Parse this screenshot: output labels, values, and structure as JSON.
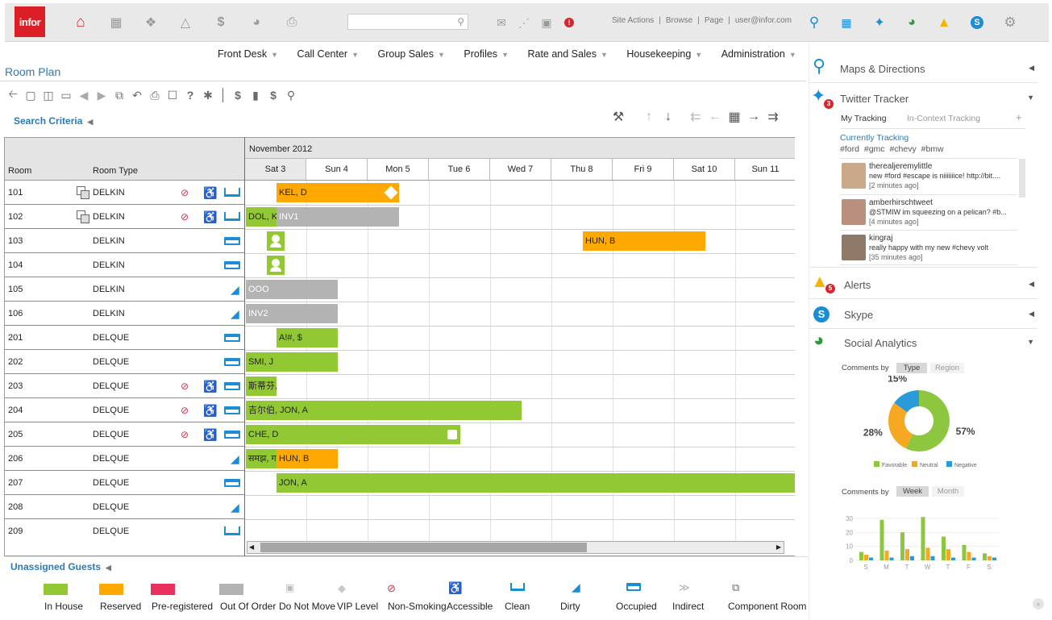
{
  "topbar": {
    "logo": "infor",
    "search_placeholder": "",
    "links": [
      "Site Actions",
      "Browse",
      "Page",
      "user@infor.com"
    ],
    "icons": [
      "home-icon",
      "dashboard-icon",
      "box-icon",
      "lab-icon",
      "dollar-doc-icon",
      "pie-icon",
      "file-icon",
      "mail-icon",
      "share-icon",
      "chat-icon",
      "alert-icon"
    ],
    "right_icons": [
      "map-pin-icon",
      "bar-chart-icon",
      "twitter-icon",
      "social-analytics-icon",
      "warning-icon",
      "skype-icon",
      "settings-icon"
    ]
  },
  "menu": [
    "Front Desk",
    "Call Center",
    "Group Sales",
    "Profiles",
    "Rate and Sales",
    "Housekeeping",
    "Administration"
  ],
  "page_title": "Room Plan",
  "search_criteria": "Search Criteria",
  "grid": {
    "month": "November 2012",
    "col_room": "Room",
    "col_type": "Room Type",
    "days": [
      "Sat 3",
      "Sun 4",
      "Mon 5",
      "Tue 6",
      "Wed 7",
      "Thu 8",
      "Fri 9",
      "Sat 10",
      "Sun 11"
    ],
    "rooms": [
      {
        "num": "101",
        "type": "DELKIN"
      },
      {
        "num": "102",
        "type": "DELKIN"
      },
      {
        "num": "103",
        "type": "DELKIN"
      },
      {
        "num": "104",
        "type": "DELKIN"
      },
      {
        "num": "105",
        "type": "DELKIN"
      },
      {
        "num": "106",
        "type": "DELKIN"
      },
      {
        "num": "201",
        "type": "DELQUE"
      },
      {
        "num": "202",
        "type": "DELQUE"
      },
      {
        "num": "203",
        "type": "DELQUE"
      },
      {
        "num": "204",
        "type": "DELQUE"
      },
      {
        "num": "205",
        "type": "DELQUE"
      },
      {
        "num": "206",
        "type": "DELQUE"
      },
      {
        "num": "207",
        "type": "DELQUE"
      },
      {
        "num": "208",
        "type": "DELQUE"
      },
      {
        "num": "209",
        "type": "DELQUE"
      }
    ],
    "bars": [
      "KEL, D",
      "DOL, K",
      "INV1",
      "HUN, B",
      "OOO",
      "INV2",
      "A!#, $",
      "SMI, J",
      "斯蒂芬,",
      "吉尔伯, JON, A",
      "CHE, D",
      "समझ, ग",
      "HUN, B",
      "JON, A"
    ]
  },
  "unassigned": "Unassigned Guests",
  "legend": [
    "In House",
    "Reserved",
    "Pre-registered",
    "Out Of Order",
    "Do Not Move",
    "VIP Level",
    "Non-Smoking",
    "Accessible",
    "Clean",
    "Dirty",
    "Occupied",
    "Indirect",
    "Component Room"
  ],
  "colors": {
    "in_house": "#93c835",
    "reserved": "#fda901",
    "pre_registered": "#e8315e",
    "out_of_order": "#b3b3b3",
    "accent": "#2a7ab8"
  },
  "panel": {
    "maps": "Maps & Directions",
    "twitter": "Twitter Tracker",
    "twitter_badge": "3",
    "tab_my": "My Tracking",
    "tab_context": "In-Context Tracking",
    "tab_add": "+",
    "tracking_title": "Currently Tracking",
    "tags": "#ford  #gmc  #chevy  #bmw",
    "tweets": [
      {
        "name": "therealjeremylittle",
        "text": "new #ford #escape is niiiiiiice! http://bit....",
        "time": "[2 minutes ago]"
      },
      {
        "name": "amberhirschtweet",
        "text": "@STMIW im squeezing on a pelican? #b...",
        "time": "[4 minutes ago]"
      },
      {
        "name": "kingraj",
        "text": "really happy with my new #chevy volt",
        "time": "[35 minutes ago]"
      }
    ],
    "alerts": "Alerts",
    "alerts_badge": "5",
    "skype": "Skype",
    "social": "Social Analytics",
    "comments_by": "Comments by",
    "seg_type": "Type",
    "seg_region": "Region",
    "seg_week": "Week",
    "seg_month": "Month",
    "pie_legend": [
      "Favorable",
      "Neutral",
      "Negative"
    ],
    "bar_days": [
      "S",
      "M",
      "T",
      "W",
      "T",
      "F",
      "S"
    ],
    "bar_yticks": [
      "30",
      "20",
      "10",
      "0"
    ]
  },
  "chart_data": [
    {
      "type": "pie",
      "categories": [
        "Favorable",
        "Neutral",
        "Negative"
      ],
      "values": [
        57,
        28,
        15
      ],
      "colors": [
        "#8dc63f",
        "#f7a823",
        "#2a9ad8"
      ],
      "labels": [
        "57%",
        "28%",
        "15%"
      ]
    },
    {
      "type": "bar",
      "categories": [
        "S",
        "M",
        "T",
        "W",
        "T",
        "F",
        "S"
      ],
      "series": [
        {
          "name": "Favorable",
          "values": [
            6,
            29,
            20,
            31,
            17,
            11,
            5
          ]
        },
        {
          "name": "Neutral",
          "values": [
            4,
            7,
            8,
            9,
            8,
            6,
            3
          ]
        },
        {
          "name": "Negative",
          "values": [
            2,
            2,
            3,
            3,
            2,
            2,
            2
          ]
        }
      ],
      "ylim": [
        0,
        30
      ]
    }
  ]
}
